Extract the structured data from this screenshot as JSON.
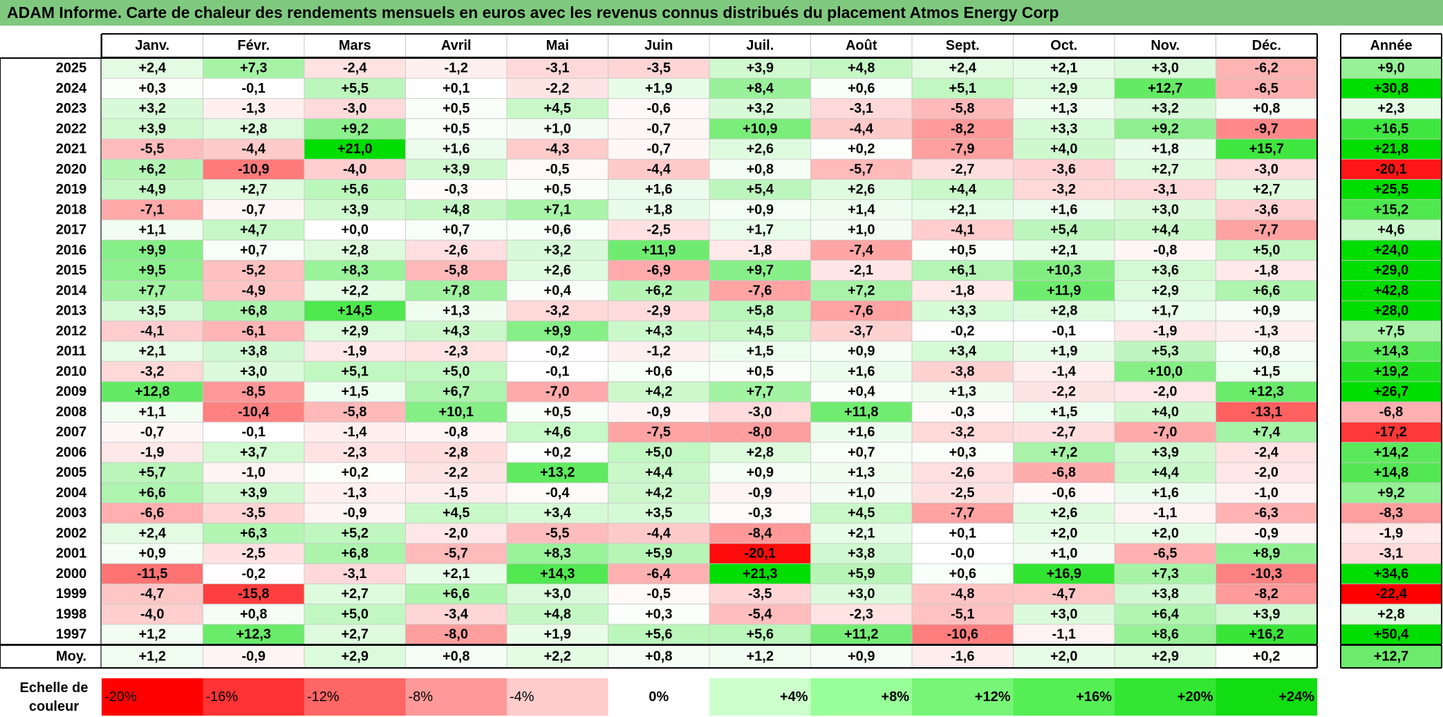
{
  "title": "ADAM Informe. Carte de chaleur des rendements mensuels en euros avec les revenus connus distribués du placement Atmos Energy Corp",
  "chart_data": {
    "type": "heatmap",
    "columns": [
      "Janv.",
      "Févr.",
      "Mars",
      "Avril",
      "Mai",
      "Juin",
      "Juil.",
      "Août",
      "Sept.",
      "Oct.",
      "Nov.",
      "Déc."
    ],
    "year_header": "Année",
    "rows": [
      {
        "label": "2025",
        "values": [
          "+2,4",
          "+7,3",
          "-2,4",
          "-1,2",
          "-3,1",
          "-3,5",
          "+3,9",
          "+4,8",
          "+2,4",
          "+2,1",
          "+3,0",
          "-6,2"
        ],
        "year": "+9,0"
      },
      {
        "label": "2024",
        "values": [
          "+0,3",
          "-0,1",
          "+5,5",
          "+0,1",
          "-2,2",
          "+1,9",
          "+8,4",
          "+0,6",
          "+5,1",
          "+2,9",
          "+12,7",
          "-6,5"
        ],
        "year": "+30,8"
      },
      {
        "label": "2023",
        "values": [
          "+3,2",
          "-1,3",
          "-3,0",
          "+0,5",
          "+4,5",
          "-0,6",
          "+3,2",
          "-3,1",
          "-5,8",
          "+1,3",
          "+3,2",
          "+0,8"
        ],
        "year": "+2,3"
      },
      {
        "label": "2022",
        "values": [
          "+3,9",
          "+2,8",
          "+9,2",
          "+0,5",
          "+1,0",
          "-0,7",
          "+10,9",
          "-4,4",
          "-8,2",
          "+3,3",
          "+9,2",
          "-9,7"
        ],
        "year": "+16,5"
      },
      {
        "label": "2021",
        "values": [
          "-5,5",
          "-4,4",
          "+21,0",
          "+1,6",
          "-4,3",
          "-0,7",
          "+2,6",
          "+0,2",
          "-7,9",
          "+4,0",
          "+1,8",
          "+15,7"
        ],
        "year": "+21,8"
      },
      {
        "label": "2020",
        "values": [
          "+6,2",
          "-10,9",
          "-4,0",
          "+3,9",
          "-0,5",
          "-4,4",
          "+0,8",
          "-5,7",
          "-2,7",
          "-3,6",
          "+2,7",
          "-3,0"
        ],
        "year": "-20,1"
      },
      {
        "label": "2019",
        "values": [
          "+4,9",
          "+2,7",
          "+5,6",
          "-0,3",
          "+0,5",
          "+1,6",
          "+5,4",
          "+2,6",
          "+4,4",
          "-3,2",
          "-3,1",
          "+2,7"
        ],
        "year": "+25,5"
      },
      {
        "label": "2018",
        "values": [
          "-7,1",
          "-0,7",
          "+3,9",
          "+4,8",
          "+7,1",
          "+1,8",
          "+0,9",
          "+1,4",
          "+2,1",
          "+1,6",
          "+3,0",
          "-3,6"
        ],
        "year": "+15,2"
      },
      {
        "label": "2017",
        "values": [
          "+1,1",
          "+4,7",
          "+0,0",
          "+0,7",
          "+0,6",
          "-2,5",
          "+1,7",
          "+1,0",
          "-4,1",
          "+5,4",
          "+4,4",
          "-7,7"
        ],
        "year": "+4,6"
      },
      {
        "label": "2016",
        "values": [
          "+9,9",
          "+0,7",
          "+2,8",
          "-2,6",
          "+3,2",
          "+11,9",
          "-1,8",
          "-7,4",
          "+0,5",
          "+2,1",
          "-0,8",
          "+5,0"
        ],
        "year": "+24,0"
      },
      {
        "label": "2015",
        "values": [
          "+9,5",
          "-5,2",
          "+8,3",
          "-5,8",
          "+2,6",
          "-6,9",
          "+9,7",
          "-2,1",
          "+6,1",
          "+10,3",
          "+3,6",
          "-1,8"
        ],
        "year": "+29,0"
      },
      {
        "label": "2014",
        "values": [
          "+7,7",
          "-4,9",
          "+2,2",
          "+7,8",
          "+0,4",
          "+6,2",
          "-7,6",
          "+7,2",
          "-1,8",
          "+11,9",
          "+2,9",
          "+6,6"
        ],
        "year": "+42,8"
      },
      {
        "label": "2013",
        "values": [
          "+3,5",
          "+6,8",
          "+14,5",
          "+1,3",
          "-3,2",
          "-2,9",
          "+5,8",
          "-7,6",
          "+3,3",
          "+2,8",
          "+1,7",
          "+0,9"
        ],
        "year": "+28,0"
      },
      {
        "label": "2012",
        "values": [
          "-4,1",
          "-6,1",
          "+2,9",
          "+4,3",
          "+9,9",
          "+4,3",
          "+4,5",
          "-3,7",
          "-0,2",
          "-0,1",
          "-1,9",
          "-1,3"
        ],
        "year": "+7,5"
      },
      {
        "label": "2011",
        "values": [
          "+2,1",
          "+3,8",
          "-1,9",
          "-2,3",
          "-0,2",
          "-1,2",
          "+1,5",
          "+0,9",
          "+3,4",
          "+1,9",
          "+5,3",
          "+0,8"
        ],
        "year": "+14,3"
      },
      {
        "label": "2010",
        "values": [
          "-3,2",
          "+3,0",
          "+5,1",
          "+5,0",
          "-0,1",
          "+0,6",
          "+0,5",
          "+1,6",
          "-3,8",
          "-1,4",
          "+10,0",
          "+1,5"
        ],
        "year": "+19,2"
      },
      {
        "label": "2009",
        "values": [
          "+12,8",
          "-8,5",
          "+1,5",
          "+6,7",
          "-7,0",
          "+4,2",
          "+7,7",
          "+0,4",
          "+1,3",
          "-2,2",
          "-2,0",
          "+12,3"
        ],
        "year": "+26,7"
      },
      {
        "label": "2008",
        "values": [
          "+1,1",
          "-10,4",
          "-5,8",
          "+10,1",
          "+0,5",
          "-0,9",
          "-3,0",
          "+11,8",
          "-0,3",
          "+1,5",
          "+4,0",
          "-13,1"
        ],
        "year": "-6,8"
      },
      {
        "label": "2007",
        "values": [
          "-0,7",
          "-0,1",
          "-1,4",
          "-0,8",
          "+4,6",
          "-7,5",
          "-8,0",
          "+1,6",
          "-3,2",
          "-2,7",
          "-7,0",
          "+7,4"
        ],
        "year": "-17,2"
      },
      {
        "label": "2006",
        "values": [
          "-1,9",
          "+3,7",
          "-2,3",
          "-2,8",
          "+0,2",
          "+5,0",
          "+2,8",
          "+0,7",
          "+0,3",
          "+7,2",
          "+3,9",
          "-2,4"
        ],
        "year": "+14,2"
      },
      {
        "label": "2005",
        "values": [
          "+5,7",
          "-1,0",
          "+0,2",
          "-2,2",
          "+13,2",
          "+4,4",
          "+0,9",
          "+1,3",
          "-2,6",
          "-6,8",
          "+4,4",
          "-2,0"
        ],
        "year": "+14,8"
      },
      {
        "label": "2004",
        "values": [
          "+6,6",
          "+3,9",
          "-1,3",
          "-1,5",
          "-0,4",
          "+4,2",
          "-0,9",
          "+1,0",
          "-2,5",
          "-0,6",
          "+1,6",
          "-1,0"
        ],
        "year": "+9,2"
      },
      {
        "label": "2003",
        "values": [
          "-6,6",
          "-3,5",
          "-0,9",
          "+4,5",
          "+3,4",
          "+3,5",
          "-0,3",
          "+4,5",
          "-7,7",
          "+2,6",
          "-1,1",
          "-6,3"
        ],
        "year": "-8,3"
      },
      {
        "label": "2002",
        "values": [
          "+2,4",
          "+6,3",
          "+5,2",
          "-2,0",
          "-5,5",
          "-4,4",
          "-8,4",
          "+2,1",
          "+0,1",
          "+2,0",
          "+2,0",
          "-0,9"
        ],
        "year": "-1,9"
      },
      {
        "label": "2001",
        "values": [
          "+0,9",
          "-2,5",
          "+6,8",
          "-5,7",
          "+8,3",
          "+5,9",
          "-20,1",
          "+3,8",
          "-0,0",
          "+1,0",
          "-6,5",
          "+8,9"
        ],
        "year": "-3,1"
      },
      {
        "label": "2000",
        "values": [
          "-11,5",
          "-0,2",
          "-3,1",
          "+2,1",
          "+14,3",
          "-6,4",
          "+21,3",
          "+5,9",
          "+0,6",
          "+16,9",
          "+7,3",
          "-10,3"
        ],
        "year": "+34,6"
      },
      {
        "label": "1999",
        "values": [
          "-4,7",
          "-15,8",
          "+2,7",
          "+6,6",
          "+3,0",
          "-0,5",
          "-3,5",
          "+3,0",
          "-4,8",
          "-4,7",
          "+3,8",
          "-8,2"
        ],
        "year": "-22,4"
      },
      {
        "label": "1998",
        "values": [
          "-4,0",
          "+0,8",
          "+5,0",
          "-3,4",
          "+4,8",
          "+0,3",
          "-5,4",
          "-2,3",
          "-5,1",
          "+3,0",
          "+6,4",
          "+3,9"
        ],
        "year": "+2,8"
      },
      {
        "label": "1997",
        "values": [
          "+1,2",
          "+12,3",
          "+2,7",
          "-8,0",
          "+1,9",
          "+5,6",
          "+5,6",
          "+11,2",
          "-10,6",
          "-1,1",
          "+8,6",
          "+16,2"
        ],
        "year": "+50,4"
      }
    ],
    "average": {
      "label": "Moy.",
      "values": [
        "+1,2",
        "-0,9",
        "+2,9",
        "+0,8",
        "+2,2",
        "+0,8",
        "+1,2",
        "+0,9",
        "-1,6",
        "+2,0",
        "+2,9",
        "+0,2"
      ],
      "year": "+12,7"
    },
    "color_scale": {
      "label_line1": "Echelle de",
      "label_line2": "couleur",
      "stops": [
        {
          "label": "-20%",
          "color": "#ff0000"
        },
        {
          "label": "-16%",
          "color": "#ff3333"
        },
        {
          "label": "-12%",
          "color": "#ff6666"
        },
        {
          "label": "-8%",
          "color": "#ff9999"
        },
        {
          "label": "-4%",
          "color": "#ffcccc"
        },
        {
          "label": "0%",
          "color": "#ffffff"
        },
        {
          "label": "+4%",
          "color": "#ccffcc"
        },
        {
          "label": "+8%",
          "color": "#99ff99"
        },
        {
          "label": "+12%",
          "color": "#77f577"
        },
        {
          "label": "+16%",
          "color": "#55ee55"
        },
        {
          "label": "+20%",
          "color": "#33e633"
        },
        {
          "label": "+24%",
          "color": "#11dd11"
        }
      ]
    },
    "colors": {
      "title_bg": "#7fc97f",
      "negative": "#ff0000",
      "positive": "#00dd00",
      "neutral": "#ffffff"
    }
  }
}
